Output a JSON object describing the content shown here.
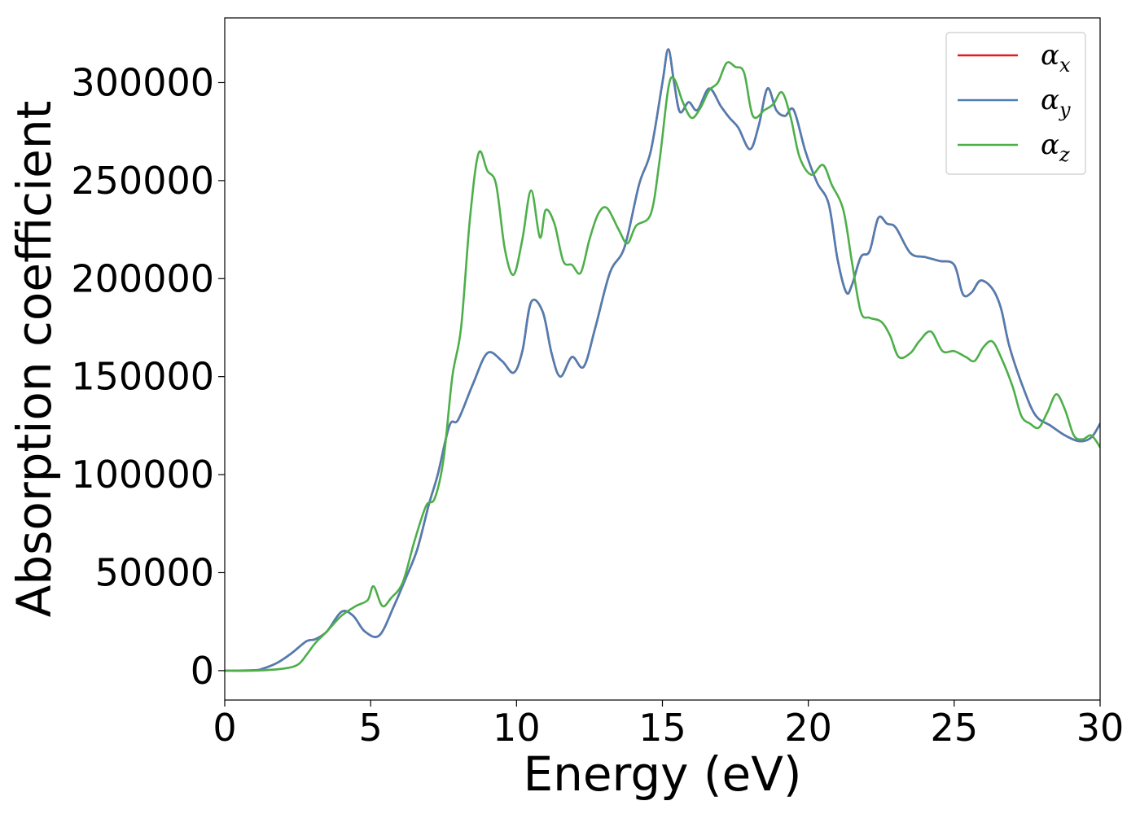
{
  "chart_data": {
    "type": "line",
    "xlabel": "Energy (eV)",
    "ylabel": "Absorption coefficient",
    "xlim": [
      0,
      30
    ],
    "ylim": [
      -15000,
      333000
    ],
    "xticks": [
      0,
      5,
      10,
      15,
      20,
      25,
      30
    ],
    "yticks": [
      0,
      50000,
      100000,
      150000,
      200000,
      250000,
      300000
    ],
    "grid": false,
    "legend_position": "top-right",
    "series": [
      {
        "name": "α_x",
        "name_base": "α",
        "name_sub": "x",
        "color": "#e41a1c",
        "x": [
          0,
          1,
          1.3,
          1.8,
          2.3,
          2.8,
          3.1,
          3.5,
          4,
          4.4,
          4.8,
          5.3,
          5.8,
          6.2,
          6.6,
          7,
          7.3,
          7.7,
          8,
          8.5,
          9,
          9.5,
          9.9,
          10.2,
          10.5,
          10.9,
          11.2,
          11.5,
          11.9,
          12.3,
          12.7,
          13.2,
          13.7,
          14.2,
          14.6,
          15,
          15.2,
          15.4,
          15.6,
          15.9,
          16.2,
          16.6,
          17,
          17.3,
          17.6,
          18,
          18.3,
          18.6,
          18.9,
          19.2,
          19.5,
          19.9,
          20.3,
          20.7,
          21,
          21.3,
          21.5,
          21.8,
          22.1,
          22.4,
          22.7,
          23,
          23.5,
          24,
          24.5,
          25,
          25.3,
          25.6,
          25.9,
          26.3,
          26.6,
          26.9,
          27.4,
          27.8,
          28.3,
          28.8,
          29.3,
          29.7,
          30
        ],
        "values": [
          0,
          200,
          1000,
          4000,
          9000,
          15000,
          16000,
          20000,
          30000,
          28000,
          20000,
          18000,
          33000,
          47000,
          62000,
          85000,
          100000,
          125000,
          128000,
          146000,
          162000,
          158000,
          152000,
          163000,
          188000,
          183000,
          162000,
          150000,
          160000,
          155000,
          175000,
          203000,
          216000,
          248000,
          265000,
          300000,
          317000,
          300000,
          285000,
          290000,
          286000,
          297000,
          288000,
          282000,
          277000,
          266000,
          278000,
          297000,
          286000,
          283000,
          286000,
          265000,
          249000,
          238000,
          210000,
          193000,
          197000,
          211000,
          214000,
          231000,
          228000,
          226000,
          213000,
          211000,
          209000,
          207000,
          192000,
          193000,
          199000,
          195000,
          185000,
          165000,
          143000,
          130000,
          125000,
          120000,
          117000,
          119000,
          126000
        ]
      },
      {
        "name": "α_y",
        "name_base": "α",
        "name_sub": "y",
        "color": "#4e7eb3",
        "x": [
          0,
          1,
          1.3,
          1.8,
          2.3,
          2.8,
          3.1,
          3.5,
          4,
          4.4,
          4.8,
          5.3,
          5.8,
          6.2,
          6.6,
          7,
          7.3,
          7.7,
          8,
          8.5,
          9,
          9.5,
          9.9,
          10.2,
          10.5,
          10.9,
          11.2,
          11.5,
          11.9,
          12.3,
          12.7,
          13.2,
          13.7,
          14.2,
          14.6,
          15,
          15.2,
          15.4,
          15.6,
          15.9,
          16.2,
          16.6,
          17,
          17.3,
          17.6,
          18,
          18.3,
          18.6,
          18.9,
          19.2,
          19.5,
          19.9,
          20.3,
          20.7,
          21,
          21.3,
          21.5,
          21.8,
          22.1,
          22.4,
          22.7,
          23,
          23.5,
          24,
          24.5,
          25,
          25.3,
          25.6,
          25.9,
          26.3,
          26.6,
          26.9,
          27.4,
          27.8,
          28.3,
          28.8,
          29.3,
          29.7,
          30
        ],
        "values": [
          0,
          200,
          1000,
          4000,
          9000,
          15000,
          16000,
          20000,
          30000,
          28000,
          20000,
          18000,
          33000,
          47000,
          62000,
          85000,
          100000,
          125000,
          128000,
          146000,
          162000,
          158000,
          152000,
          163000,
          188000,
          183000,
          162000,
          150000,
          160000,
          155000,
          175000,
          203000,
          216000,
          248000,
          265000,
          300000,
          317000,
          300000,
          285000,
          290000,
          286000,
          297000,
          288000,
          282000,
          277000,
          266000,
          278000,
          297000,
          286000,
          283000,
          286000,
          265000,
          249000,
          238000,
          210000,
          193000,
          197000,
          211000,
          214000,
          231000,
          228000,
          226000,
          213000,
          211000,
          209000,
          207000,
          192000,
          193000,
          199000,
          195000,
          185000,
          165000,
          143000,
          130000,
          125000,
          120000,
          117000,
          119000,
          126000
        ]
      },
      {
        "name": "α_z",
        "name_base": "α",
        "name_sub": "z",
        "color": "#4daf4a",
        "x": [
          0,
          1,
          2,
          2.5,
          2.8,
          3.1,
          3.5,
          4,
          4.5,
          4.9,
          5.1,
          5.4,
          5.7,
          6.1,
          6.5,
          6.9,
          7.2,
          7.5,
          7.8,
          8.1,
          8.4,
          8.7,
          9,
          9.3,
          9.6,
          9.9,
          10.2,
          10.5,
          10.8,
          11,
          11.3,
          11.6,
          11.9,
          12.2,
          12.5,
          12.8,
          13.1,
          13.5,
          13.8,
          14.1,
          14.6,
          14.9,
          15.2,
          15.4,
          15.7,
          16,
          16.3,
          16.6,
          16.9,
          17.2,
          17.5,
          17.8,
          18.1,
          18.5,
          18.8,
          19.1,
          19.4,
          19.7,
          20.1,
          20.5,
          20.8,
          21.2,
          21.5,
          21.8,
          22.1,
          22.5,
          22.8,
          23.1,
          23.5,
          23.8,
          24.2,
          24.6,
          25,
          25.4,
          25.7,
          26,
          26.3,
          26.6,
          27,
          27.3,
          27.6,
          27.9,
          28.2,
          28.5,
          28.8,
          29.1,
          29.4,
          29.7,
          30
        ],
        "values": [
          0,
          0,
          1000,
          3000,
          8000,
          14000,
          20000,
          28000,
          33000,
          36000,
          43000,
          33000,
          37000,
          45000,
          66000,
          84000,
          88000,
          108000,
          150000,
          175000,
          230000,
          264000,
          255000,
          248000,
          215000,
          202000,
          220000,
          245000,
          221000,
          235000,
          228000,
          209000,
          207000,
          203000,
          220000,
          233000,
          236000,
          225000,
          218000,
          227000,
          233000,
          260000,
          297000,
          302000,
          290000,
          282000,
          287000,
          296000,
          300000,
          310000,
          308000,
          305000,
          283000,
          286000,
          289000,
          295000,
          282000,
          262000,
          253000,
          258000,
          248000,
          235000,
          208000,
          183000,
          180000,
          178000,
          171000,
          160000,
          162000,
          168000,
          173000,
          163000,
          163000,
          160000,
          158000,
          165000,
          168000,
          160000,
          145000,
          130000,
          126000,
          124000,
          132000,
          141000,
          133000,
          120000,
          118000,
          120000,
          114000
        ]
      }
    ]
  }
}
